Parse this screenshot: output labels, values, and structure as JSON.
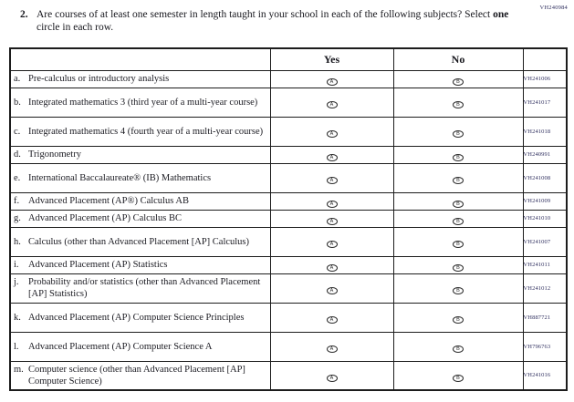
{
  "page_code": "VH240984",
  "question": {
    "number": "2.",
    "text_before_bold": "Are courses of at least one semester in length taught in your school in each of the following subjects? Select ",
    "bold_word": "one",
    "text_after_bold": " circle in each row."
  },
  "table": {
    "headers": {
      "yes": "Yes",
      "no": "No"
    },
    "options": {
      "yes_letter": "A",
      "no_letter": "B"
    },
    "rows": [
      {
        "letter": "a.",
        "subject": "Pre-calculus or introductory analysis",
        "code": "VH241006"
      },
      {
        "letter": "b.",
        "subject": "Integrated mathematics 3 (third year of a multi-year course)",
        "code": "VH241017"
      },
      {
        "letter": "c.",
        "subject": "Integrated mathematics 4 (fourth year of a multi-year course)",
        "code": "VH241018"
      },
      {
        "letter": "d.",
        "subject": "Trigonometry",
        "code": "VH240991"
      },
      {
        "letter": "e.",
        "subject": "International Baccalaureate® (IB) Mathematics",
        "code": "VH241008"
      },
      {
        "letter": "f.",
        "subject": "Advanced Placement (AP®) Calculus AB",
        "code": "VH241009"
      },
      {
        "letter": "g.",
        "subject": "Advanced Placement (AP) Calculus BC",
        "code": "VH241010"
      },
      {
        "letter": "h.",
        "subject": "Calculus (other than Advanced Placement [AP] Calculus)",
        "code": "VH241007"
      },
      {
        "letter": "i.",
        "subject": "Advanced Placement (AP) Statistics",
        "code": "VH241011"
      },
      {
        "letter": "j.",
        "subject": "Probability and/or statistics (other than Advanced Placement [AP] Statistics)",
        "code": "VH241012"
      },
      {
        "letter": "k.",
        "subject": "Advanced Placement (AP) Computer Science Principles",
        "code": "VH887721"
      },
      {
        "letter": "l.",
        "subject": "Advanced Placement (AP) Computer Science A",
        "code": "VH796763"
      },
      {
        "letter": "m.",
        "subject": "Computer science (other than Advanced Placement [AP] Computer Science)",
        "code": "VH241016"
      }
    ]
  }
}
